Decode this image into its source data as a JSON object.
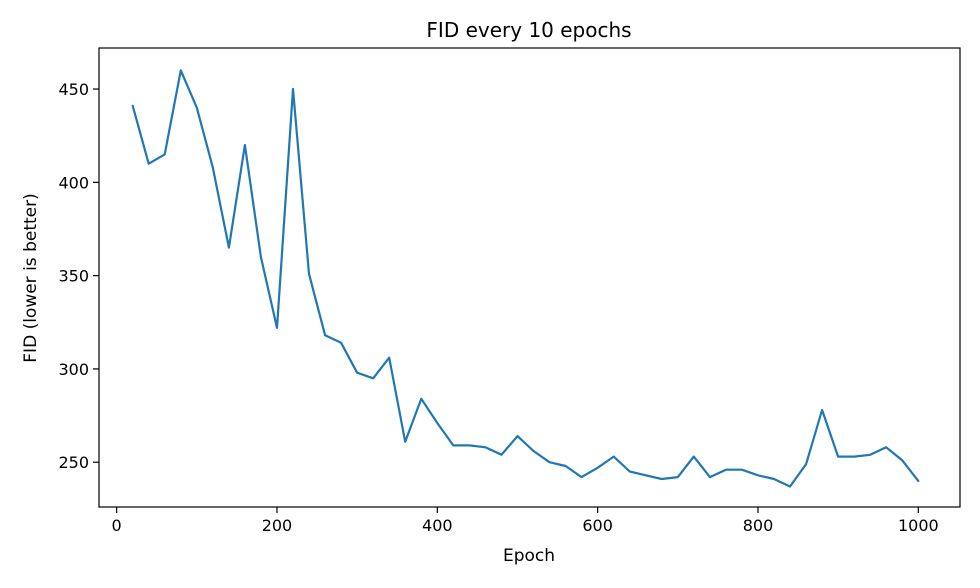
{
  "chart_data": {
    "type": "line",
    "title": "FID every 10 epochs",
    "xlabel": "Epoch",
    "ylabel": "FID (lower is better)",
    "xlim": [
      -22,
      1052
    ],
    "ylim": [
      226,
      472
    ],
    "xticks": [
      0,
      200,
      400,
      600,
      800,
      1000
    ],
    "yticks": [
      250,
      300,
      350,
      400,
      450
    ],
    "xtick_labels": [
      "0",
      "200",
      "400",
      "600",
      "800",
      "1000"
    ],
    "ytick_labels": [
      "250",
      "300",
      "350",
      "400",
      "450"
    ],
    "grid": false,
    "legend": "none",
    "colors": {
      "line": "#1f77b4",
      "axes": "#000000",
      "background": "#ffffff"
    },
    "series": [
      {
        "x": [
          20,
          40,
          60,
          80,
          100,
          120,
          140,
          160,
          180,
          200,
          220,
          240,
          260,
          280,
          300,
          320,
          340,
          360,
          380,
          400,
          420,
          440,
          460,
          480,
          500,
          520,
          540,
          560,
          580,
          600,
          620,
          640,
          660,
          680,
          700,
          720,
          740,
          760,
          780,
          800,
          820,
          840,
          860,
          880,
          900,
          920,
          940,
          960,
          980,
          1000
        ],
        "values": [
          441,
          410,
          415,
          460,
          440,
          408,
          365,
          420,
          360,
          322,
          450,
          351,
          318,
          314,
          298,
          295,
          306,
          261,
          284,
          271,
          259,
          259,
          258,
          254,
          264,
          256,
          250,
          248,
          242,
          247,
          253,
          245,
          243,
          241,
          242,
          253,
          242,
          246,
          246,
          243,
          241,
          237,
          249,
          278,
          253,
          253,
          254,
          258,
          251,
          240
        ]
      }
    ]
  }
}
